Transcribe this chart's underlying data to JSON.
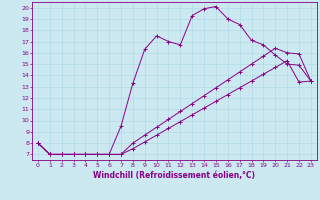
{
  "title": "",
  "xlabel": "Windchill (Refroidissement éolien,°C)",
  "bg_color": "#cce8f0",
  "line_color": "#880088",
  "xlim": [
    -0.5,
    23.5
  ],
  "ylim": [
    6.5,
    20.5
  ],
  "xticks": [
    0,
    1,
    2,
    3,
    4,
    5,
    6,
    7,
    8,
    9,
    10,
    11,
    12,
    13,
    14,
    15,
    16,
    17,
    18,
    19,
    20,
    21,
    22,
    23
  ],
  "yticks": [
    7,
    8,
    9,
    10,
    11,
    12,
    13,
    14,
    15,
    16,
    17,
    18,
    19,
    20
  ],
  "line1_x": [
    0,
    1,
    2,
    3,
    4,
    5,
    6,
    7,
    8,
    9,
    10,
    11,
    12,
    13,
    14,
    15,
    16,
    17,
    18,
    19,
    20,
    21,
    22,
    23
  ],
  "line1_y": [
    8,
    7,
    7,
    7,
    7,
    7,
    7,
    9.5,
    13.3,
    16.3,
    17.5,
    17.0,
    16.7,
    19.3,
    19.9,
    20.1,
    19.0,
    18.5,
    17.1,
    16.7,
    15.8,
    15.0,
    14.9,
    13.5
  ],
  "line2_x": [
    0,
    1,
    2,
    3,
    4,
    5,
    6,
    7,
    8,
    9,
    10,
    11,
    12,
    13,
    14,
    15,
    16,
    17,
    18,
    19,
    20,
    21,
    22,
    23
  ],
  "line2_y": [
    8,
    7,
    7,
    7,
    7,
    7,
    7,
    7,
    8.0,
    8.7,
    9.4,
    10.1,
    10.8,
    11.5,
    12.2,
    12.9,
    13.6,
    14.3,
    15.0,
    15.7,
    16.4,
    16.0,
    15.9,
    13.5
  ],
  "line3_x": [
    0,
    1,
    2,
    3,
    4,
    5,
    6,
    7,
    8,
    9,
    10,
    11,
    12,
    13,
    14,
    15,
    16,
    17,
    18,
    19,
    20,
    21,
    22,
    23
  ],
  "line3_y": [
    8,
    7,
    7,
    7,
    7,
    7,
    7,
    7,
    7.5,
    8.1,
    8.7,
    9.3,
    9.9,
    10.5,
    11.1,
    11.7,
    12.3,
    12.9,
    13.5,
    14.1,
    14.7,
    15.3,
    13.4,
    13.5
  ],
  "grid_color": "#aad8e8",
  "xlabel_fontsize": 5.5,
  "tick_fontsize": 4.5,
  "linewidth": 0.7,
  "markersize": 2.5
}
